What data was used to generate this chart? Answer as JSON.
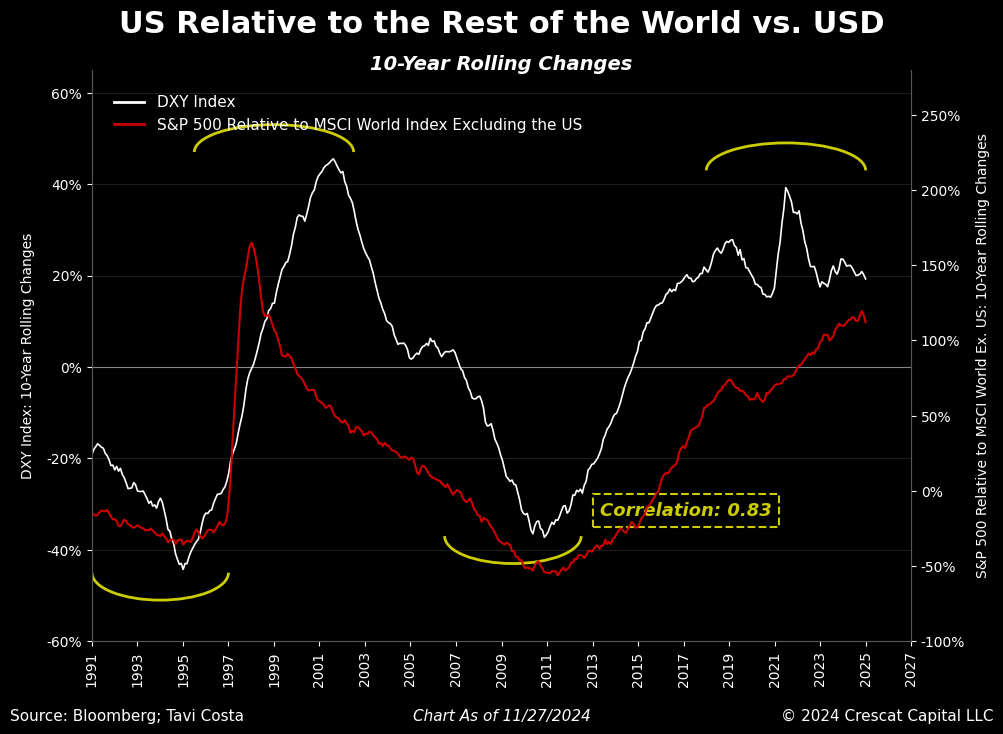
{
  "title": "US Relative to the Rest of the World vs. USD",
  "subtitle": "10-Year Rolling Changes",
  "background_color": "#000000",
  "text_color": "#ffffff",
  "ylabel_left": "DXY Index: 10-Year Rolling Changes",
  "ylabel_right": "S&P 500 Relative to MSCI World Ex. US: 10-Year Rolling Changes",
  "xlabel": "",
  "source_text": "Source: Bloomberg; Tavi Costa",
  "chart_date_text": "Chart As of 11/27/2024",
  "copyright_text": "© 2024 Crescat Capital LLC",
  "legend_dxy": "DXY Index",
  "legend_sp500": "S&P 500 Relative to MSCI World Index Excluding the US",
  "correlation_text": "Correlation: 0.83",
  "ylim_left": [
    -60,
    65
  ],
  "ylim_right": [
    -100,
    280
  ],
  "yticks_left": [
    -60,
    -40,
    -20,
    0,
    20,
    40,
    60
  ],
  "yticks_right": [
    -100,
    -50,
    0,
    50,
    100,
    150,
    200,
    250
  ],
  "xticks": [
    1991,
    1993,
    1995,
    1997,
    1999,
    2001,
    2003,
    2005,
    2007,
    2009,
    2011,
    2013,
    2015,
    2017,
    2019,
    2021,
    2023,
    2025,
    2027
  ],
  "dxy_color": "#ffffff",
  "sp500_color": "#cc0000",
  "yellow_color": "#cccc00",
  "corr_box_color": "#cccc00",
  "grid_color": "#333333",
  "title_fontsize": 22,
  "subtitle_fontsize": 14,
  "axis_label_fontsize": 10,
  "tick_fontsize": 10,
  "legend_fontsize": 11,
  "footer_fontsize": 11
}
